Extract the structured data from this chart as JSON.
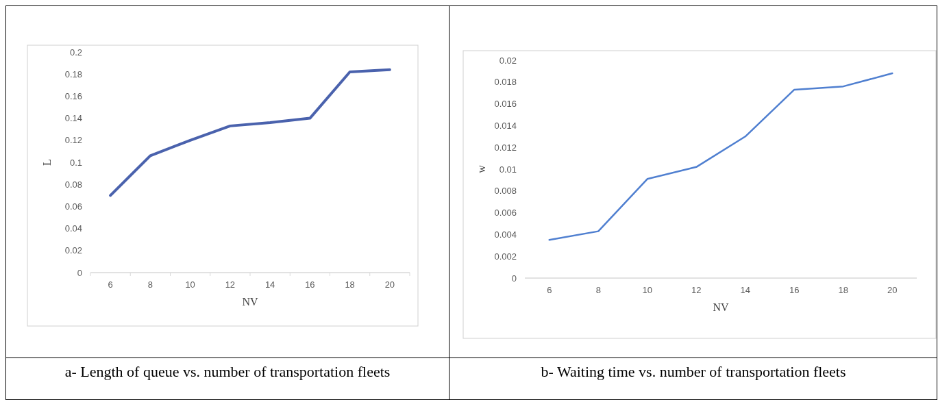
{
  "chart_data": [
    {
      "type": "line",
      "title": "a- Length of queue vs. number of transportation fleets",
      "xlabel": "NV",
      "ylabel": "L",
      "categories": [
        "6",
        "8",
        "10",
        "12",
        "14",
        "16",
        "18",
        "20"
      ],
      "series": [
        {
          "color": "#4a62ad",
          "values": [
            0.07,
            0.106,
            0.12,
            0.133,
            0.136,
            0.14,
            0.182,
            0.184
          ]
        }
      ],
      "ylim": [
        0,
        0.2
      ],
      "yticks": [
        0,
        0.02,
        0.04,
        0.06,
        0.08,
        0.1,
        0.12,
        0.14,
        0.16,
        0.18,
        0.2
      ]
    },
    {
      "type": "line",
      "title": "b- Waiting time vs. number of transportation fleets",
      "xlabel": "NV",
      "ylabel": "w",
      "categories": [
        "6",
        "8",
        "10",
        "12",
        "14",
        "16",
        "18",
        "20"
      ],
      "series": [
        {
          "color": "#4f7fd0",
          "values": [
            0.0035,
            0.0043,
            0.0091,
            0.0102,
            0.013,
            0.0173,
            0.0176,
            0.0188
          ]
        }
      ],
      "ylim": [
        0,
        0.02
      ],
      "yticks": [
        0,
        0.002,
        0.004,
        0.006,
        0.008,
        0.01,
        0.012,
        0.014,
        0.016,
        0.018,
        0.02
      ]
    }
  ]
}
